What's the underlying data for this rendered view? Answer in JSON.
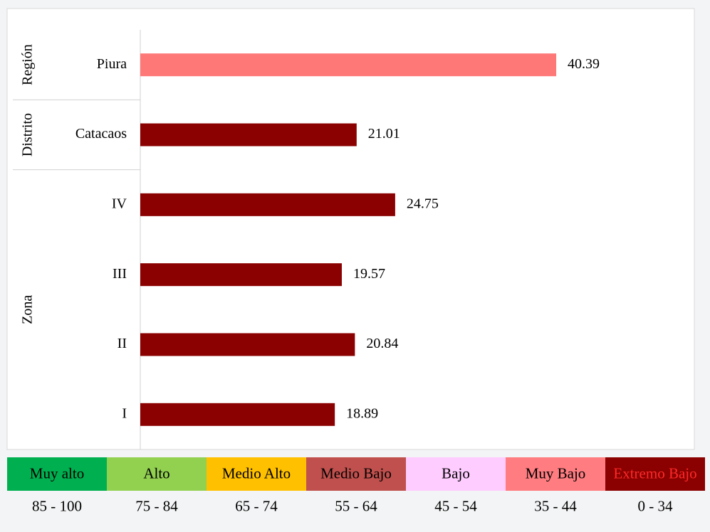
{
  "chart_data": {
    "type": "bar",
    "orientation": "horizontal",
    "xlim": [
      0,
      50
    ],
    "groups": [
      {
        "name": "Región",
        "categories": [
          "Piura"
        ],
        "values": [
          40.39
        ],
        "colors": [
          "#ff7878"
        ]
      },
      {
        "name": "Distrito",
        "categories": [
          "Catacaos"
        ],
        "values": [
          21.01
        ],
        "colors": [
          "#8b0000"
        ]
      },
      {
        "name": "Zona",
        "categories": [
          "IV",
          "III",
          "II",
          "I"
        ],
        "values": [
          24.75,
          19.57,
          20.84,
          18.89
        ],
        "colors": [
          "#8b0000",
          "#8b0000",
          "#8b0000",
          "#8b0000"
        ]
      }
    ],
    "legend": [
      {
        "label": "Muy alto",
        "range": "85 - 100",
        "color": "#00b050"
      },
      {
        "label": "Alto",
        "range": "75 - 84",
        "color": "#92d050"
      },
      {
        "label": "Medio Alto",
        "range": "65 - 74",
        "color": "#ffc000"
      },
      {
        "label": "Medio Bajo",
        "range": "55 - 64",
        "color": "#c0504d"
      },
      {
        "label": "Bajo",
        "range": "45 - 54",
        "color": "#ffccff"
      },
      {
        "label": "Muy Bajo",
        "range": "35 - 44",
        "color": "#ff7c80"
      },
      {
        "label": "Extremo Bajo",
        "range": "0 - 34",
        "color": "#8b0000",
        "text_color": "#ff2a2a"
      }
    ]
  }
}
